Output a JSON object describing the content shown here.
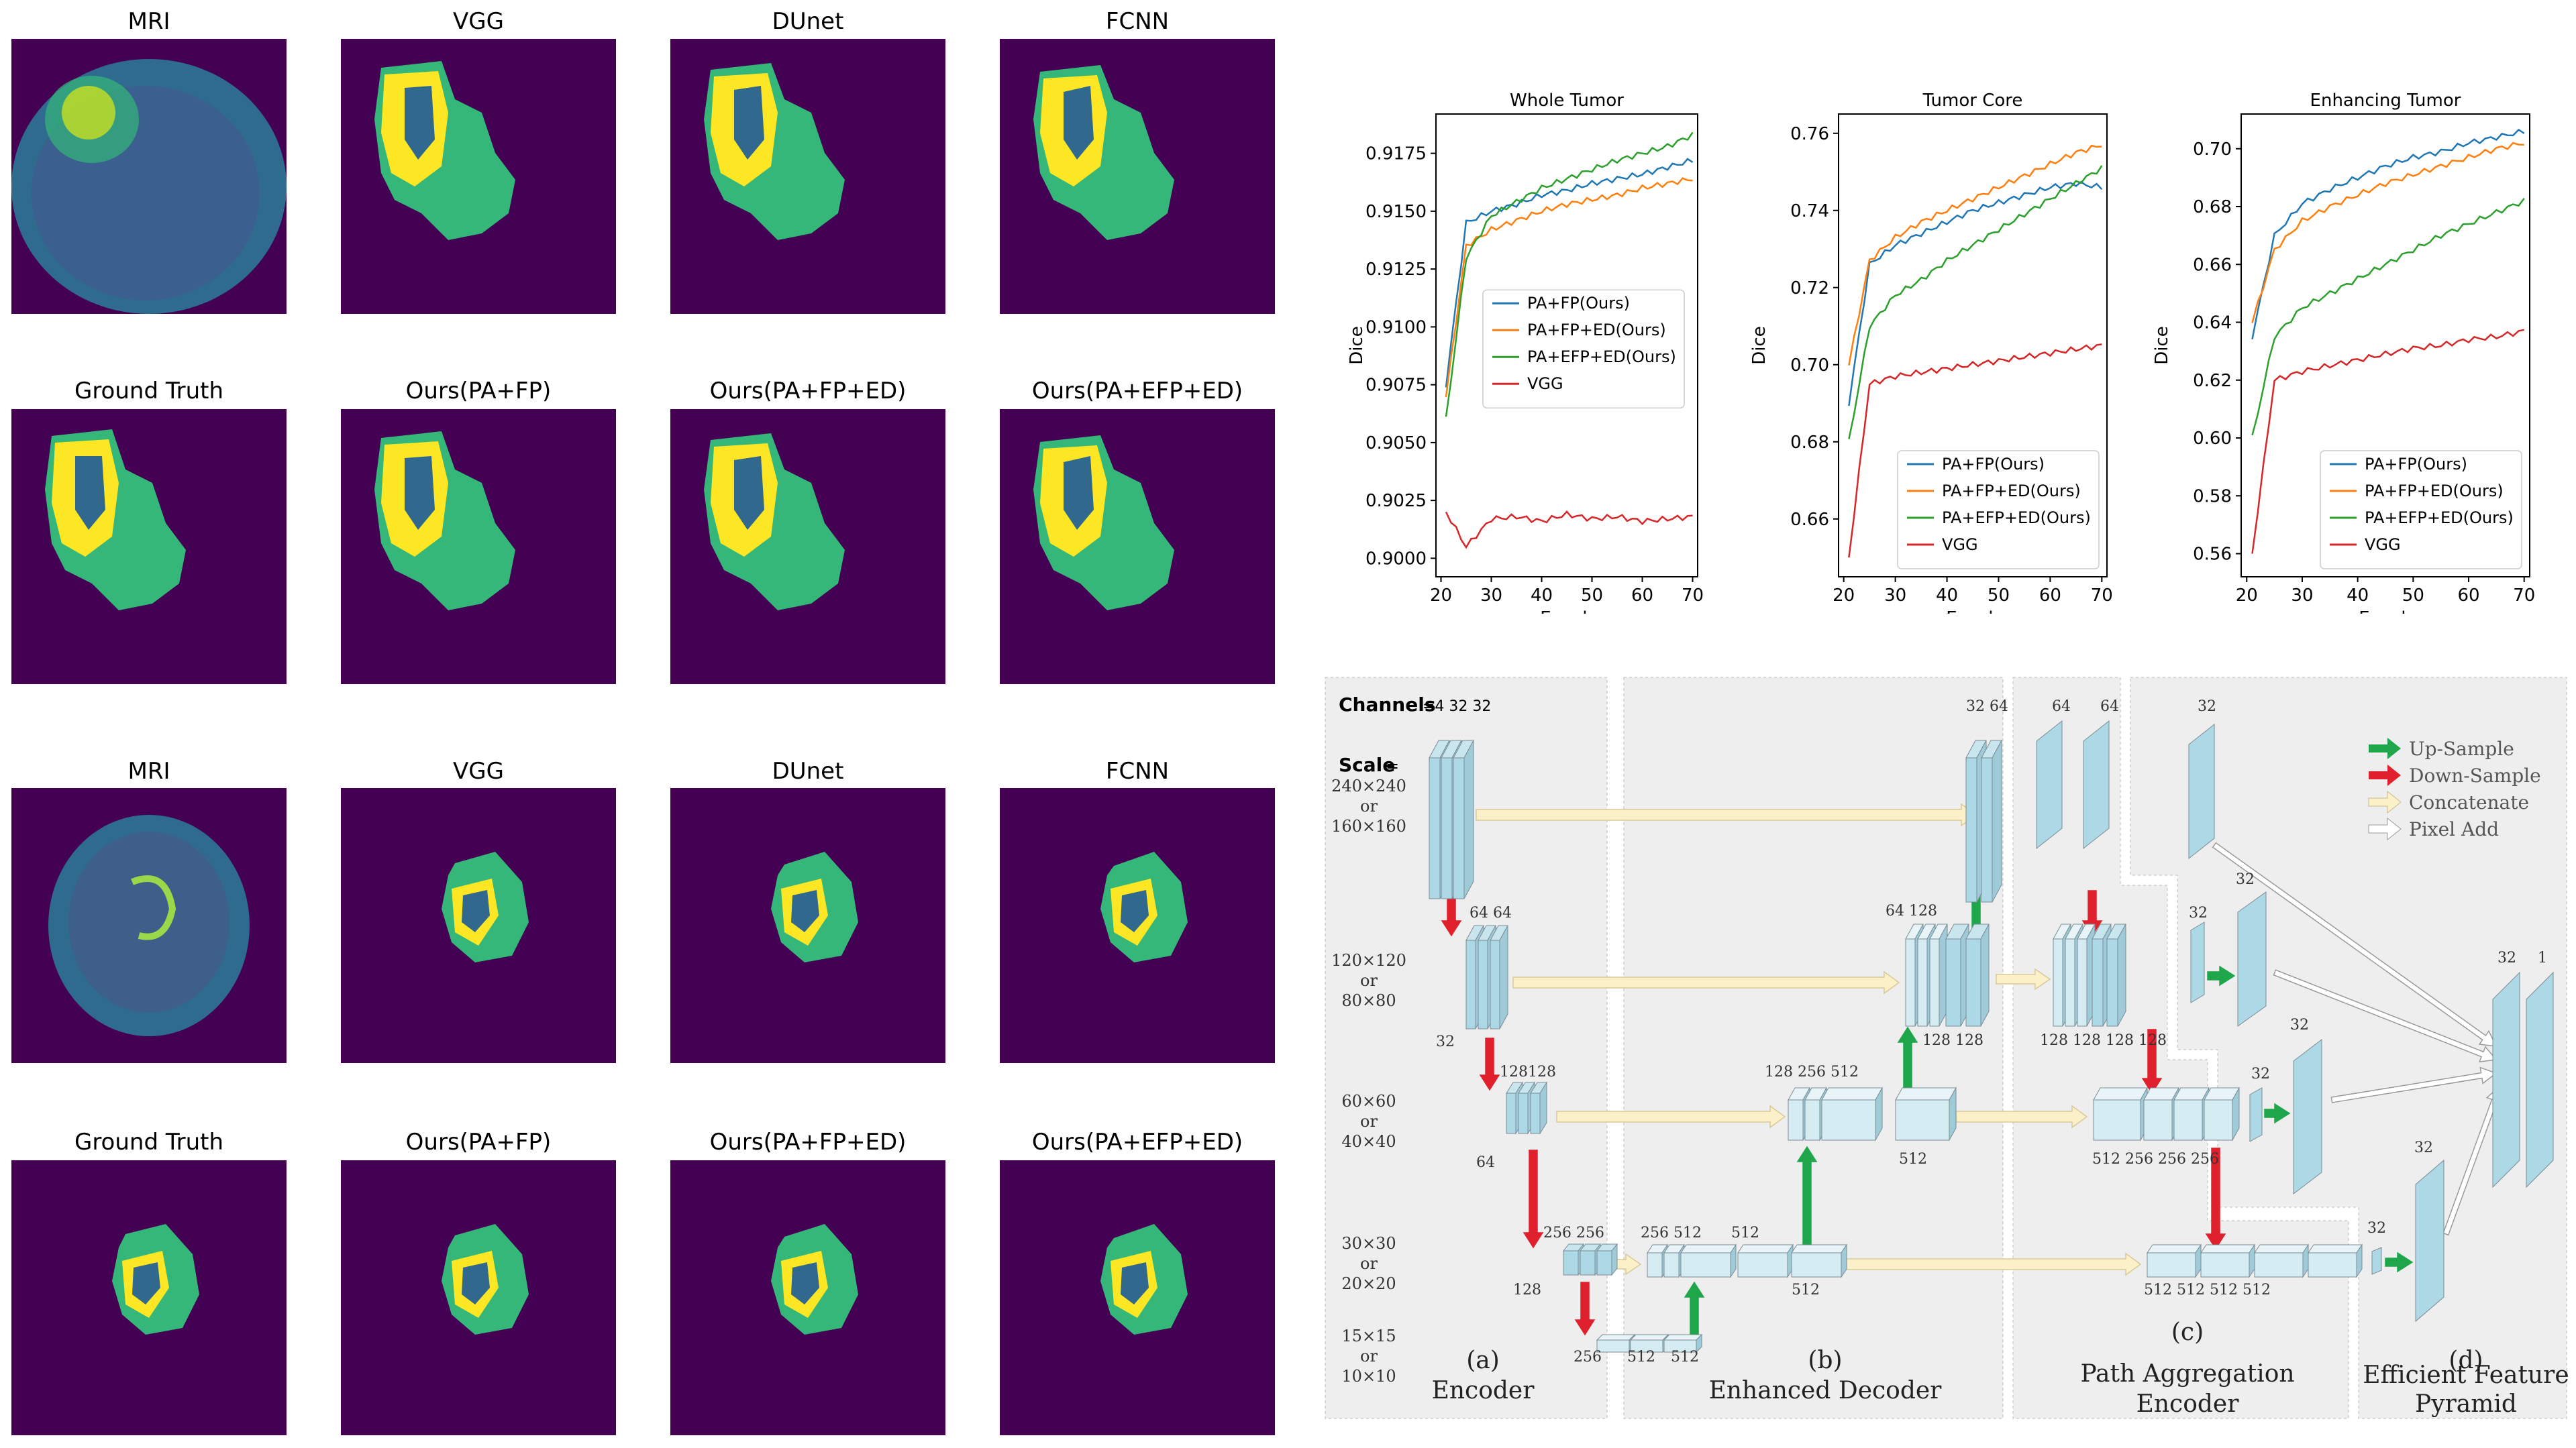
{
  "segmentation_grid": {
    "case1": {
      "row1": [
        "MRI",
        "VGG",
        "DUnet",
        "FCNN"
      ],
      "row2": [
        "Ground Truth",
        "Ours(PA+FP)",
        "Ours(PA+FP+ED)",
        "Ours(PA+EFP+ED)"
      ]
    },
    "case2": {
      "row1": [
        "MRI",
        "VGG",
        "DUnet",
        "FCNN"
      ],
      "row2": [
        "Ground Truth",
        "Ours(PA+FP)",
        "Ours(PA+FP+ED)",
        "Ours(PA+EFP+ED)"
      ]
    },
    "colors": {
      "background": "#440154",
      "edema": "#35b779",
      "core": "#31688e",
      "enhancing": "#fde725"
    }
  },
  "chart_data": [
    {
      "type": "line",
      "title": "Whole Tumor",
      "xlabel": "Epoch",
      "ylabel": "Dice",
      "xlim": [
        19,
        71
      ],
      "ylim": [
        0.8992,
        0.9192
      ],
      "xticks": [
        "20",
        "30",
        "40",
        "50",
        "60",
        "70"
      ],
      "yticks": [
        "0.9000",
        "0.9025",
        "0.9050",
        "0.9075",
        "0.9100",
        "0.9125",
        "0.9150",
        "0.9175"
      ],
      "legend": "center-right",
      "x": [
        21,
        25,
        30,
        35,
        40,
        45,
        50,
        55,
        60,
        65,
        70
      ],
      "series": [
        {
          "name": "PA+FP(Ours)",
          "color": "#1f77b4",
          "values": [
            0.9075,
            0.9145,
            0.915,
            0.9153,
            0.9157,
            0.9159,
            0.9162,
            0.9164,
            0.9166,
            0.9169,
            0.9172
          ]
        },
        {
          "name": "PA+FP+ED(Ours)",
          "color": "#ff7f0e",
          "values": [
            0.907,
            0.9135,
            0.9142,
            0.9146,
            0.915,
            0.9153,
            0.9155,
            0.9157,
            0.916,
            0.9162,
            0.9164
          ]
        },
        {
          "name": "PA+EFP+ED(Ours)",
          "color": "#2ca02c",
          "values": [
            0.906,
            0.913,
            0.9148,
            0.9154,
            0.916,
            0.9164,
            0.9168,
            0.9172,
            0.9175,
            0.9178,
            0.9183
          ]
        },
        {
          "name": "VGG",
          "color": "#d62728",
          "values": [
            0.902,
            0.9005,
            0.9017,
            0.9018,
            0.9016,
            0.9019,
            0.9017,
            0.9018,
            0.9016,
            0.9017,
            0.9018
          ]
        }
      ]
    },
    {
      "type": "line",
      "title": "Tumor Core",
      "xlabel": "Epoch",
      "ylabel": "Dice",
      "xlim": [
        19,
        71
      ],
      "ylim": [
        0.645,
        0.765
      ],
      "xticks": [
        "20",
        "30",
        "40",
        "50",
        "60",
        "70"
      ],
      "yticks": [
        "0.66",
        "0.68",
        "0.70",
        "0.72",
        "0.74",
        "0.76"
      ],
      "legend": "lower-right",
      "x": [
        21,
        25,
        30,
        35,
        40,
        45,
        50,
        55,
        60,
        65,
        70
      ],
      "series": [
        {
          "name": "PA+FP(Ours)",
          "color": "#1f77b4",
          "values": [
            0.69,
            0.726,
            0.731,
            0.734,
            0.737,
            0.74,
            0.742,
            0.744,
            0.746,
            0.747,
            0.746
          ]
        },
        {
          "name": "PA+FP+ED(Ours)",
          "color": "#ff7f0e",
          "values": [
            0.7,
            0.727,
            0.733,
            0.737,
            0.74,
            0.743,
            0.746,
            0.749,
            0.752,
            0.755,
            0.757
          ]
        },
        {
          "name": "PA+EFP+ED(Ours)",
          "color": "#2ca02c",
          "values": [
            0.68,
            0.71,
            0.718,
            0.722,
            0.727,
            0.731,
            0.735,
            0.739,
            0.743,
            0.747,
            0.751
          ]
        },
        {
          "name": "VGG",
          "color": "#d62728",
          "values": [
            0.65,
            0.695,
            0.697,
            0.698,
            0.699,
            0.7,
            0.701,
            0.702,
            0.703,
            0.704,
            0.705
          ]
        }
      ]
    },
    {
      "type": "line",
      "title": "Enhancing Tumor",
      "xlabel": "Epoch",
      "ylabel": "Dice",
      "xlim": [
        19,
        71
      ],
      "ylim": [
        0.552,
        0.712
      ],
      "xticks": [
        "20",
        "30",
        "40",
        "50",
        "60",
        "70"
      ],
      "yticks": [
        "0.56",
        "0.58",
        "0.60",
        "0.62",
        "0.64",
        "0.66",
        "0.68",
        "0.70"
      ],
      "legend": "lower-right",
      "x": [
        21,
        25,
        30,
        35,
        40,
        45,
        50,
        55,
        60,
        65,
        70
      ],
      "series": [
        {
          "name": "PA+FP(Ours)",
          "color": "#1f77b4",
          "values": [
            0.635,
            0.67,
            0.681,
            0.686,
            0.69,
            0.694,
            0.697,
            0.699,
            0.702,
            0.704,
            0.706
          ]
        },
        {
          "name": "PA+FP+ED(Ours)",
          "color": "#ff7f0e",
          "values": [
            0.64,
            0.665,
            0.675,
            0.68,
            0.684,
            0.688,
            0.691,
            0.694,
            0.697,
            0.7,
            0.702
          ]
        },
        {
          "name": "PA+EFP+ED(Ours)",
          "color": "#2ca02c",
          "values": [
            0.6,
            0.635,
            0.645,
            0.65,
            0.655,
            0.66,
            0.665,
            0.67,
            0.674,
            0.678,
            0.682
          ]
        },
        {
          "name": "VGG",
          "color": "#d62728",
          "values": [
            0.56,
            0.62,
            0.623,
            0.625,
            0.627,
            0.629,
            0.631,
            0.632,
            0.634,
            0.635,
            0.637
          ]
        }
      ]
    }
  ],
  "architecture": {
    "channels_label": "Channels",
    "channels_values": "=4 32 32",
    "scale_label": "Scale",
    "scale_eq": "=",
    "scales": [
      [
        "240×240",
        "or",
        "160×160"
      ],
      [
        "120×120",
        "or",
        "80×80"
      ],
      [
        "60×60",
        "or",
        "40×40"
      ],
      [
        "30×30",
        "or",
        "20×20"
      ],
      [
        "15×15",
        "or",
        "10×10"
      ]
    ],
    "legend": [
      {
        "name": "Up-Sample",
        "color": "#1fa64a"
      },
      {
        "name": "Down-Sample",
        "color": "#e0202c"
      },
      {
        "name": "Concatenate",
        "color": "#fbf0c8"
      },
      {
        "name": "Pixel Add",
        "color": "#ffffff"
      }
    ],
    "sections": [
      {
        "tag": "(a)",
        "name": "Encoder"
      },
      {
        "tag": "(b)",
        "name": "Enhanced Decoder"
      },
      {
        "tag": "(c)",
        "name": "Path Aggregation",
        "name2": "Encoder"
      },
      {
        "tag": "(d)",
        "name": "Efficient Feature",
        "name2": "Pyramid"
      }
    ],
    "labels": {
      "e1_bot": "32",
      "e2_top": "64 64",
      "e2_bot": "64",
      "e3_top": "128128",
      "e3_bot": "128",
      "e4_top": "256 256",
      "e4_bot": "256",
      "e5_bot_a": "512",
      "e5_bot_b": "512",
      "d4_top": "256 512",
      "d4_top2": "512",
      "d4_bot": "512",
      "d3_top": "128  256  512",
      "d3_bot": "512",
      "d2_top": "64 128",
      "d2_bot": "128 128",
      "d1_top": "32 64",
      "p1_top_a": "64",
      "p1_top_b": "64",
      "p2_bot": "128 128 128 128",
      "p3_bot": "512 256 256 256",
      "p4_bot": "512   512     512     512",
      "f1_top": "32",
      "f2_top": "32",
      "f2_top2": "32",
      "f3_top": "32",
      "f3_top2": "32",
      "f4_top": "32",
      "f4_top2": "32",
      "out_a": "32",
      "out_b": "1"
    }
  }
}
